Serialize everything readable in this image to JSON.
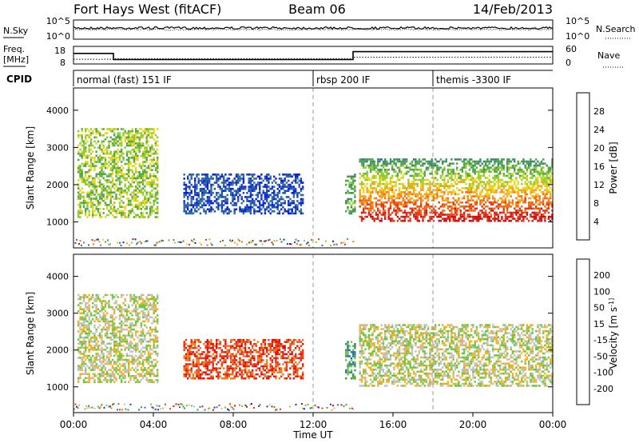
{
  "header": {
    "station": "Fort Hays West (fitACF)",
    "beam": "Beam 06",
    "date": "14/Feb/2013"
  },
  "noise_panel": {
    "left_label": "N.Sky",
    "left_ticks": [
      "10^5",
      "10^0"
    ],
    "right_ticks": [
      "10^5",
      "10^0"
    ],
    "right_label": "N.Search"
  },
  "freq_panel": {
    "left_label_line1": "Freq.",
    "left_label_line2": "[MHz]",
    "left_ticks": [
      "18",
      "8"
    ],
    "right_ticks": [
      "60",
      "0"
    ],
    "right_label": "Nave",
    "freq_steps": [
      {
        "t0": 0.0,
        "t1": 2.0,
        "mhz": 14.0
      },
      {
        "t0": 2.0,
        "t1": 14.0,
        "mhz": 10.5
      },
      {
        "t0": 14.0,
        "t1": 24.0,
        "mhz": 15.0
      }
    ],
    "nave_steps": [
      {
        "t0": 0.0,
        "t1": 2.0,
        "value": 16
      },
      {
        "t0": 2.0,
        "t1": 14.0,
        "value": 18
      },
      {
        "t0": 14.0,
        "t1": 24.0,
        "value": 23
      }
    ]
  },
  "cpid": {
    "label": "CPID",
    "segments": [
      {
        "t0": 0.0,
        "t1": 12.0,
        "name": "normal (fast) 151 IF"
      },
      {
        "t0": 12.0,
        "t1": 18.0,
        "name": "rbsp 200 IF"
      },
      {
        "t0": 18.0,
        "t1": 24.0,
        "name": "themis -3300 IF"
      }
    ]
  },
  "chart_data": [
    {
      "type": "heatmap",
      "ylabel": "Slant Range [km]",
      "xlabel": "Time UT",
      "xlim": [
        0,
        24
      ],
      "ylim": [
        300,
        4600
      ],
      "y_ticks": [
        "1000",
        "2000",
        "3000",
        "4000"
      ],
      "x_ticks": [
        "00:00",
        "04:00",
        "08:00",
        "12:00",
        "16:00",
        "20:00",
        "00:00"
      ],
      "colorbar_label": "Power [dB]",
      "colorbar_ticks": [
        "4",
        "8",
        "12",
        "16",
        "20",
        "24",
        "28"
      ],
      "colorbar_colors": [
        "#0a1edc",
        "#1f4fb4",
        "#2f6f96",
        "#3f8a6c",
        "#52a64a",
        "#8fcc2c",
        "#e8d51a",
        "#f6a51a",
        "#f0701a",
        "#e03a18",
        "#d01010"
      ],
      "echo_regions": [
        {
          "t0": 0.2,
          "t1": 4.2,
          "r0": 1100,
          "r1": 3500,
          "level": 5
        },
        {
          "t0": 5.5,
          "t1": 11.5,
          "r0": 1200,
          "r1": 2300,
          "level": 1
        },
        {
          "t0": 13.6,
          "t1": 14.1,
          "r0": 1200,
          "r1": 2300,
          "level": 4
        },
        {
          "t0": 14.3,
          "t1": 24.0,
          "r0": 1000,
          "r1": 2700,
          "level": 7
        }
      ]
    },
    {
      "type": "heatmap",
      "ylabel": "Slant Range [km]",
      "xlabel": "Time UT",
      "xlim": [
        0,
        24
      ],
      "ylim": [
        300,
        4600
      ],
      "y_ticks": [
        "1000",
        "2000",
        "3000",
        "4000"
      ],
      "x_ticks": [
        "00:00",
        "04:00",
        "08:00",
        "12:00",
        "16:00",
        "20:00",
        "00:00"
      ],
      "colorbar_label": "Velocity [m s^-1]",
      "colorbar_ticks": [
        "200",
        "100",
        "50",
        "15",
        "-15",
        "-50",
        "-100",
        "-200"
      ],
      "colorbar_colors": [
        "#1a2fd0",
        "#2a6fbf",
        "#3c9a3c",
        "#6cc63c",
        "#c0c0c0",
        "#f0b020",
        "#f07a18",
        "#e83a16",
        "#e01010"
      ],
      "echo_regions": [
        {
          "t0": 0.2,
          "t1": 4.2,
          "r0": 1100,
          "r1": 3500,
          "level": 4
        },
        {
          "t0": 5.5,
          "t1": 11.5,
          "r0": 1200,
          "r1": 2300,
          "level": 7
        },
        {
          "t0": 13.6,
          "t1": 14.1,
          "r0": 1200,
          "r1": 2300,
          "level": 2
        },
        {
          "t0": 14.3,
          "t1": 24.0,
          "r0": 1000,
          "r1": 2700,
          "level": 4
        }
      ]
    }
  ]
}
